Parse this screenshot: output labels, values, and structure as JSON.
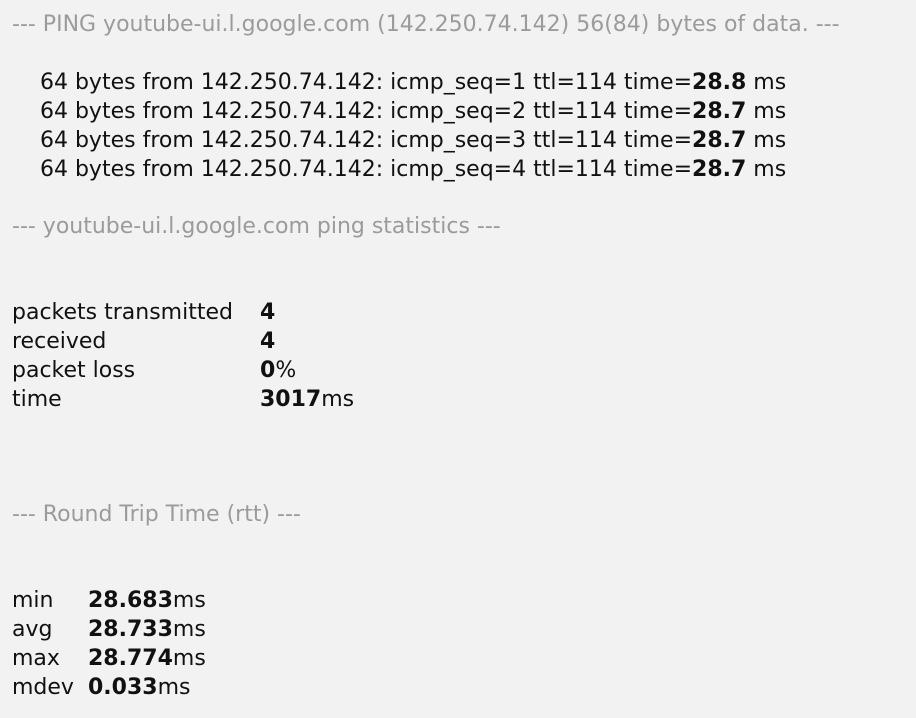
{
  "header": {
    "text": "--- PING youtube-ui.l.google.com (142.250.74.142) 56(84) bytes of data. ---"
  },
  "replies": [
    {
      "prefix": "64 bytes from 142.250.74.142: icmp_seq=1 ttl=114 time=",
      "time": "28.8",
      "unit": " ms"
    },
    {
      "prefix": "64 bytes from 142.250.74.142: icmp_seq=2 ttl=114 time=",
      "time": "28.7",
      "unit": " ms"
    },
    {
      "prefix": "64 bytes from 142.250.74.142: icmp_seq=3 ttl=114 time=",
      "time": "28.7",
      "unit": " ms"
    },
    {
      "prefix": "64 bytes from 142.250.74.142: icmp_seq=4 ttl=114 time=",
      "time": "28.7",
      "unit": " ms"
    }
  ],
  "statistics": {
    "heading": "--- youtube-ui.l.google.com ping statistics ---",
    "rows": [
      {
        "label": "packets transmitted",
        "value": "4",
        "unit": ""
      },
      {
        "label": "received",
        "value": "4",
        "unit": ""
      },
      {
        "label": "packet loss",
        "value": "0",
        "unit": " %"
      },
      {
        "label": "time",
        "value": "3017",
        "unit": " ms"
      }
    ]
  },
  "rtt": {
    "heading": "--- Round Trip Time (rtt) ---",
    "rows": [
      {
        "label": "min",
        "value": "28.683",
        "unit": " ms"
      },
      {
        "label": "avg",
        "value": "28.733",
        "unit": " ms"
      },
      {
        "label": "max",
        "value": "28.774",
        "unit": " ms"
      },
      {
        "label": "mdev",
        "value": "0.033",
        "unit": " ms"
      }
    ]
  }
}
